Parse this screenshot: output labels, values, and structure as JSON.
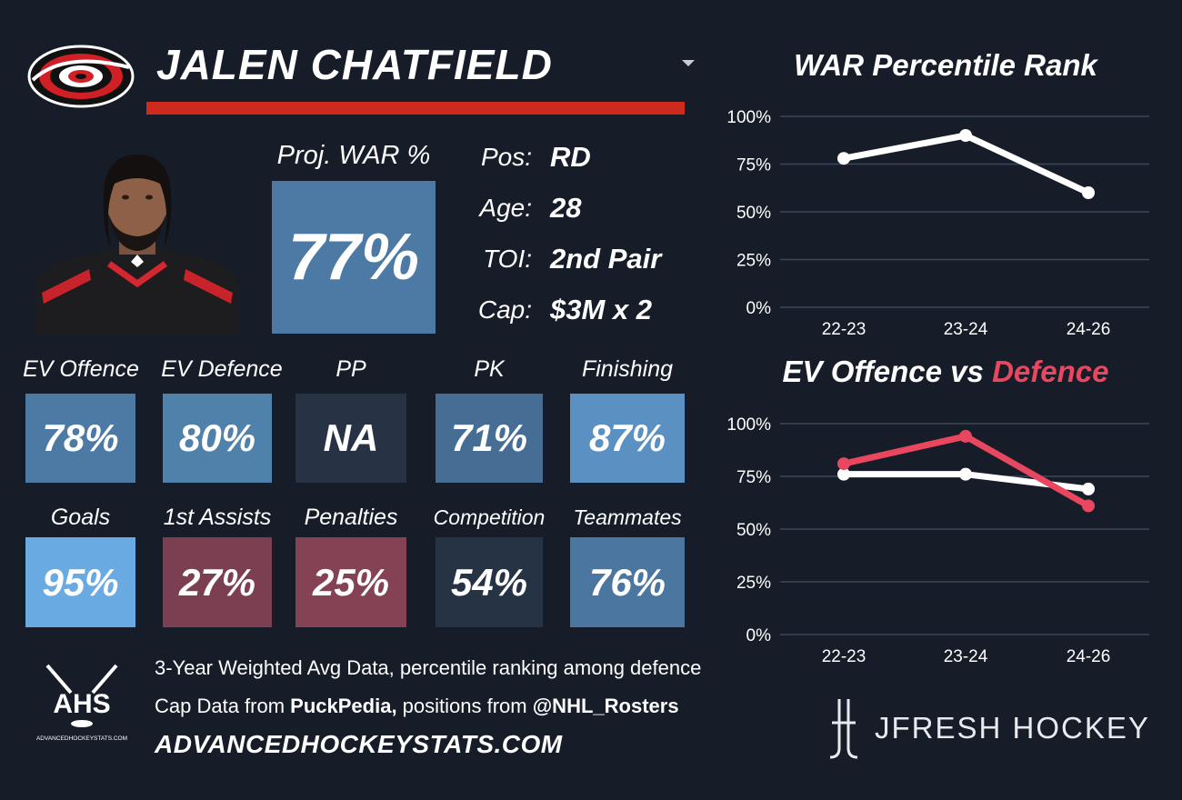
{
  "player": {
    "name": "JALEN CHATFIELD",
    "team_logo": "hurricanes-logo-icon",
    "headshot": "player-headshot"
  },
  "proj_war": {
    "label": "Proj. WAR %",
    "value": "77%",
    "color": "#4d7aa4"
  },
  "info": [
    {
      "label": "Pos:",
      "value": "RD"
    },
    {
      "label": "Age:",
      "value": "28"
    },
    {
      "label": "TOI:",
      "value": "2nd Pair"
    },
    {
      "label": "Cap:",
      "value": "$3M x 2"
    }
  ],
  "tiles_row1": [
    {
      "label": "EV Offence",
      "value": "78%",
      "color": "#4d7aa4"
    },
    {
      "label": "EV Defence",
      "value": "80%",
      "color": "#5081ab"
    },
    {
      "label": "PP",
      "value": "NA",
      "color": "#273344"
    },
    {
      "label": "PK",
      "value": "71%",
      "color": "#466d93"
    },
    {
      "label": "Finishing",
      "value": "87%",
      "color": "#5a90c2"
    }
  ],
  "tiles_row2": [
    {
      "label": "Goals",
      "value": "95%",
      "color": "#6aaae3"
    },
    {
      "label": "1st Assists",
      "value": "27%",
      "color": "#7c3f52"
    },
    {
      "label": "Penalties",
      "value": "25%",
      "color": "#844254"
    },
    {
      "label": "Competition",
      "value": "54%",
      "color": "#263344"
    },
    {
      "label": "Teammates",
      "value": "76%",
      "color": "#4b76a0"
    }
  ],
  "footer": {
    "line1": "3-Year Weighted Avg Data, percentile ranking among defence",
    "line2_prefix": "Cap Data from ",
    "line2_bold1": "PuckPedia,",
    "line2_mid": " positions from ",
    "line2_bold2": "@NHL_Rosters",
    "site": "ADVANCEDHOCKEYSTATS.COM",
    "ahs_logo_text": "AHS",
    "ahs_logo_small": "ADVANCEDHOCKEYSTATS.COM",
    "jfresh": "JFRESH HOCKEY"
  },
  "chart_data": [
    {
      "type": "line",
      "title": "WAR Percentile Rank",
      "categories": [
        "22-23",
        "23-24",
        "24-26"
      ],
      "series": [
        {
          "values": [
            78,
            90,
            60
          ],
          "color": "#ffffff"
        }
      ],
      "yticks": [
        "0%",
        "25%",
        "50%",
        "75%",
        "100%"
      ],
      "ylim": [
        0,
        100
      ],
      "grid": true
    },
    {
      "type": "line",
      "title_part1": "EV Offence vs ",
      "title_part2": "Defence",
      "title_part2_color": "#e8475f",
      "categories": [
        "22-23",
        "23-24",
        "24-26"
      ],
      "series": [
        {
          "values": [
            76,
            76,
            69
          ],
          "color": "#ffffff"
        },
        {
          "values": [
            81,
            94,
            61
          ],
          "color": "#e8475f"
        }
      ],
      "yticks": [
        "0%",
        "25%",
        "50%",
        "75%",
        "100%"
      ],
      "ylim": [
        0,
        100
      ],
      "grid": true
    }
  ]
}
